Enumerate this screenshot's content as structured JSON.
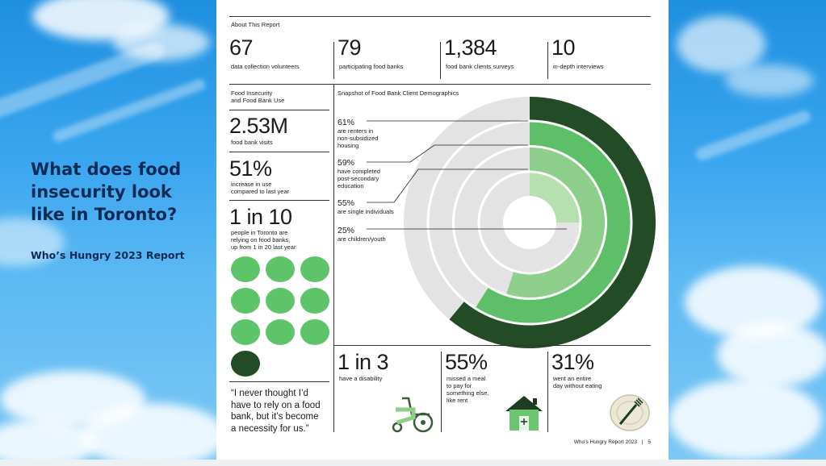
{
  "slide": {
    "title": "What does food insecurity look like in Toronto?",
    "subtitle": "Who’s Hungry 2023 Report"
  },
  "report": {
    "section_label": "About This Report",
    "stats": [
      {
        "value": "67",
        "label": "data collection volunteers"
      },
      {
        "value": "79",
        "label": "participating food banks"
      },
      {
        "value": "1,384",
        "label": "food bank clients surveys"
      },
      {
        "value": "10",
        "label": "in-depth interviews"
      }
    ],
    "food_insecurity": {
      "heading_line1": "Food Insecurity",
      "heading_line2": "and Food Bank Use",
      "visits_value": "2.53M",
      "visits_label": "food bank visits",
      "increase_value": "51%",
      "increase_line1": "increase in use",
      "increase_line2": "compared to last year",
      "ratio_value": "1 in 10",
      "ratio_line1": "people in Toronto are",
      "ratio_line2": "relying on food banks,",
      "ratio_line3": "up from 1 in 20 last year",
      "dots_total": 10,
      "dots_highlighted": 1
    },
    "demographics": {
      "heading": "Snapshot of Food Bank Client Demographics",
      "items": [
        {
          "value": "61%",
          "line1": "are renters in",
          "line2": "non-subsidized",
          "line3": "housing",
          "color": "#234b26"
        },
        {
          "value": "59%",
          "line1": "have completed",
          "line2": "post-secondary",
          "line3": "education",
          "color": "#5dbf68"
        },
        {
          "value": "55%",
          "line1": "are single individuals",
          "line2": "",
          "line3": "",
          "color": "#8dcf8a"
        },
        {
          "value": "25%",
          "line1": "are children/youth",
          "line2": "",
          "line3": "",
          "color": "#b7e0b0"
        }
      ],
      "track_color": "#e3e3e3"
    },
    "bottom_stats": [
      {
        "value": "1 in 3",
        "line1": "have a disability",
        "line2": "",
        "line3": ""
      },
      {
        "value": "55%",
        "line1": "missed a meal",
        "line2": "to pay for",
        "line3": "something else,",
        "line4": "like rent"
      },
      {
        "value": "31%",
        "line1": "went an entire",
        "line2": "day without eating",
        "line3": ""
      }
    ],
    "quote_line1": "“I never thought I’d",
    "quote_line2": "have to rely on a food",
    "quote_line3": "bank, but it’s become",
    "quote_line4": "a necessity for us.”",
    "footer_title": "Who’s Hungry Report  2023",
    "footer_sep": "|",
    "footer_page": "5"
  },
  "icons": [
    "wheelchair-icon",
    "house-icon",
    "plate-fork-icon"
  ]
}
